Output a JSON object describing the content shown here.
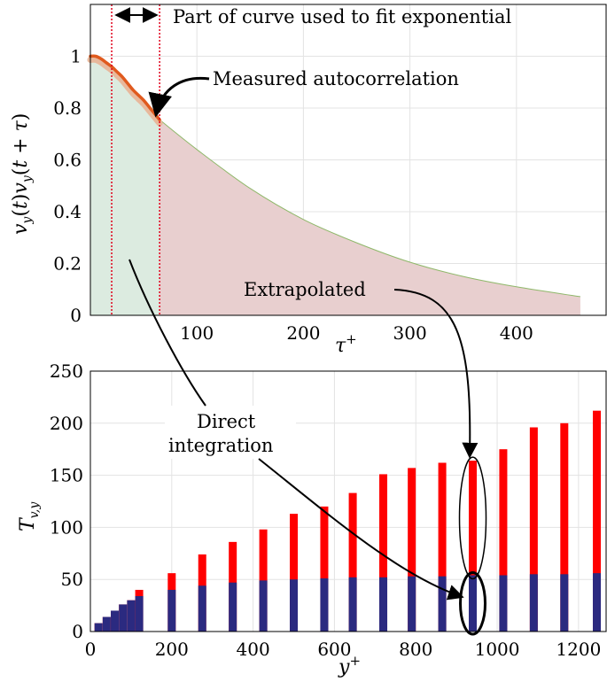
{
  "chart_data": [
    {
      "type": "area",
      "xlabel": "τ+",
      "ylabel": "v_y(t)v_y(t+τ)",
      "xlim": [
        0,
        485
      ],
      "ylim": [
        0,
        1.2
      ],
      "xticks": [
        100,
        200,
        300,
        400
      ],
      "yticks": [
        0,
        0.2,
        0.4,
        0.6,
        0.8,
        1
      ],
      "grid": true,
      "fit_range": [
        20,
        65
      ],
      "measured": {
        "x": [
          0,
          5,
          10,
          15,
          20,
          25,
          30,
          35,
          40,
          45,
          50,
          55,
          60,
          65
        ],
        "y": [
          1.0,
          1.0,
          0.99,
          0.975,
          0.96,
          0.94,
          0.92,
          0.895,
          0.87,
          0.85,
          0.83,
          0.805,
          0.78,
          0.755
        ]
      },
      "extrapolated": {
        "x": [
          65,
          100,
          150,
          200,
          250,
          300,
          350,
          400,
          460
        ],
        "y": [
          0.755,
          0.64,
          0.49,
          0.37,
          0.28,
          0.205,
          0.15,
          0.11,
          0.072
        ]
      },
      "annotations": {
        "fit_range": "Part of curve used to fit exponential",
        "measured": "Measured autocorrelation",
        "extrapolated": "Extrapolated",
        "direct": [
          "Direct",
          "integration"
        ]
      },
      "colors": {
        "measured": "#e05a1e",
        "measured_band": "#e8b89c",
        "extrapolated_fill": "#e8cfcf",
        "direct_fill": "#dcebe0",
        "fit_lines": "#e0001a"
      }
    },
    {
      "type": "bar",
      "xlabel": "y+",
      "ylabel": "T_{v,y}",
      "xlim": [
        0,
        1270
      ],
      "ylim": [
        0,
        250
      ],
      "xticks": [
        0,
        200,
        400,
        600,
        800,
        1000,
        1200
      ],
      "yticks": [
        0,
        50,
        100,
        150,
        200,
        250
      ],
      "grid": true,
      "x": [
        20,
        40,
        60,
        80,
        100,
        120,
        200,
        275,
        350,
        425,
        500,
        575,
        645,
        720,
        790,
        865,
        940,
        1015,
        1090,
        1165,
        1245
      ],
      "series": [
        {
          "values": [
            8,
            14,
            20,
            26,
            30,
            34,
            40,
            44,
            47,
            49,
            50,
            51,
            52,
            52,
            53,
            53,
            54,
            54,
            55,
            55,
            56
          ]
        },
        {
          "values": [
            8,
            14,
            20,
            26,
            30,
            40,
            56,
            74,
            86,
            98,
            113,
            120,
            133,
            151,
            157,
            162,
            164,
            175,
            196,
            200,
            212
          ]
        }
      ],
      "colors": {
        "direct": "#2b2a80",
        "total": "#ff0000"
      },
      "highlight_x": 940
    }
  ]
}
